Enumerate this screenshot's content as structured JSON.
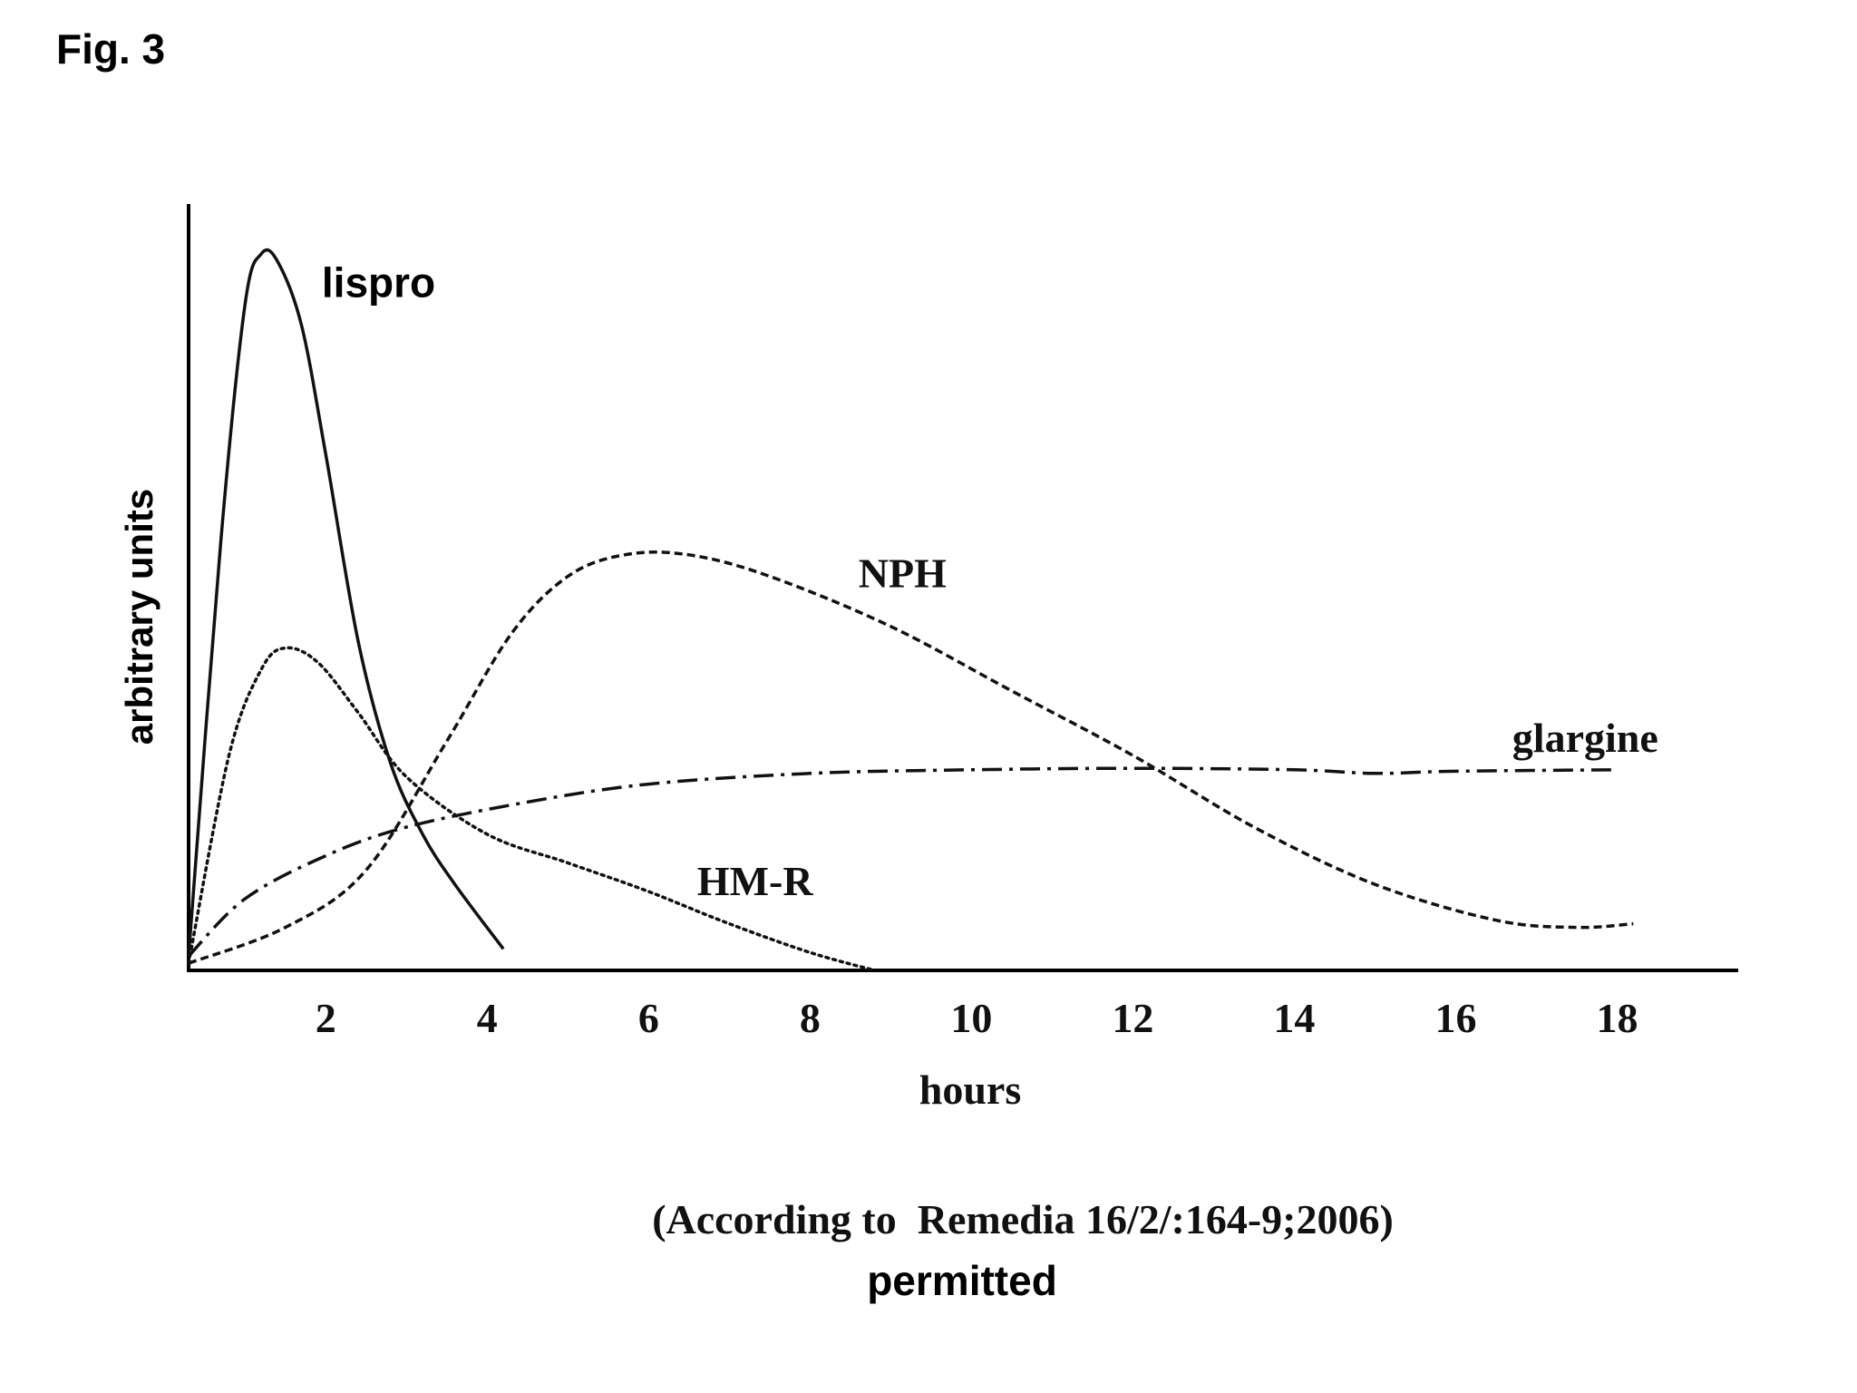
{
  "figure_label": "Fig. 3",
  "source_note": "(According to  Remedia 16/2/:164-9;2006)",
  "footer_note": "permitted",
  "chart_data": {
    "type": "line",
    "title": "",
    "xlabel": "hours",
    "ylabel": "arbitrary units",
    "xlim": [
      0.3,
      19.5
    ],
    "ylim": [
      0,
      100
    ],
    "y_tick_labels": "none",
    "grid": false,
    "legend": "inline labels next to curves",
    "x_ticks": [
      {
        "value": 2,
        "label": "2"
      },
      {
        "value": 4,
        "label": "4"
      },
      {
        "value": 6,
        "label": "6"
      },
      {
        "value": 8,
        "label": "8"
      },
      {
        "value": 10,
        "label": "10"
      },
      {
        "value": 12,
        "label": "12"
      },
      {
        "value": 14,
        "label": "14"
      },
      {
        "value": 16,
        "label": "16"
      },
      {
        "value": 18,
        "label": "18"
      }
    ],
    "series": [
      {
        "name": "lispro",
        "style": "solid",
        "label_at": [
          1.95,
          94
        ],
        "points": [
          [
            0.3,
            2
          ],
          [
            0.7,
            60
          ],
          [
            1.0,
            93
          ],
          [
            1.2,
            100
          ],
          [
            1.4,
            99
          ],
          [
            1.7,
            90
          ],
          [
            2.0,
            72
          ],
          [
            2.4,
            46
          ],
          [
            2.8,
            29
          ],
          [
            3.2,
            19
          ],
          [
            3.6,
            12
          ],
          [
            4.2,
            3
          ]
        ]
      },
      {
        "name": "HM-R",
        "style": "dotted",
        "label_at": [
          6.6,
          10.5
        ],
        "points": [
          [
            0.3,
            1
          ],
          [
            0.8,
            30
          ],
          [
            1.2,
            42
          ],
          [
            1.5,
            45
          ],
          [
            1.9,
            43
          ],
          [
            2.4,
            36
          ],
          [
            3.0,
            27
          ],
          [
            4.0,
            19
          ],
          [
            5.0,
            15
          ],
          [
            6.0,
            11
          ],
          [
            7.0,
            6.5
          ],
          [
            8.0,
            2.5
          ],
          [
            8.8,
            0
          ]
        ]
      },
      {
        "name": "NPH",
        "style": "dashed",
        "label_at": [
          8.6,
          53.5
        ],
        "points": [
          [
            0.3,
            1
          ],
          [
            1.5,
            6
          ],
          [
            2.5,
            14
          ],
          [
            3.5,
            32
          ],
          [
            4.3,
            47
          ],
          [
            5.0,
            55
          ],
          [
            5.7,
            58
          ],
          [
            6.5,
            58
          ],
          [
            7.5,
            55
          ],
          [
            9.0,
            48
          ],
          [
            10.5,
            39
          ],
          [
            12.0,
            30
          ],
          [
            13.5,
            20
          ],
          [
            15.0,
            12
          ],
          [
            16.5,
            7
          ],
          [
            17.5,
            6
          ],
          [
            18.2,
            6.5
          ]
        ]
      },
      {
        "name": "glargine",
        "style": "dash-dot",
        "label_at": [
          16.7,
          30.5
        ],
        "points": [
          [
            0.3,
            2
          ],
          [
            1.0,
            10
          ],
          [
            2.0,
            16
          ],
          [
            3.0,
            20
          ],
          [
            4.5,
            23.5
          ],
          [
            6.0,
            26
          ],
          [
            8.0,
            27.5
          ],
          [
            10.0,
            28
          ],
          [
            12.0,
            28.2
          ],
          [
            14.0,
            28
          ],
          [
            15.0,
            27.5
          ],
          [
            16.0,
            27.8
          ],
          [
            18.0,
            28
          ]
        ]
      }
    ]
  }
}
